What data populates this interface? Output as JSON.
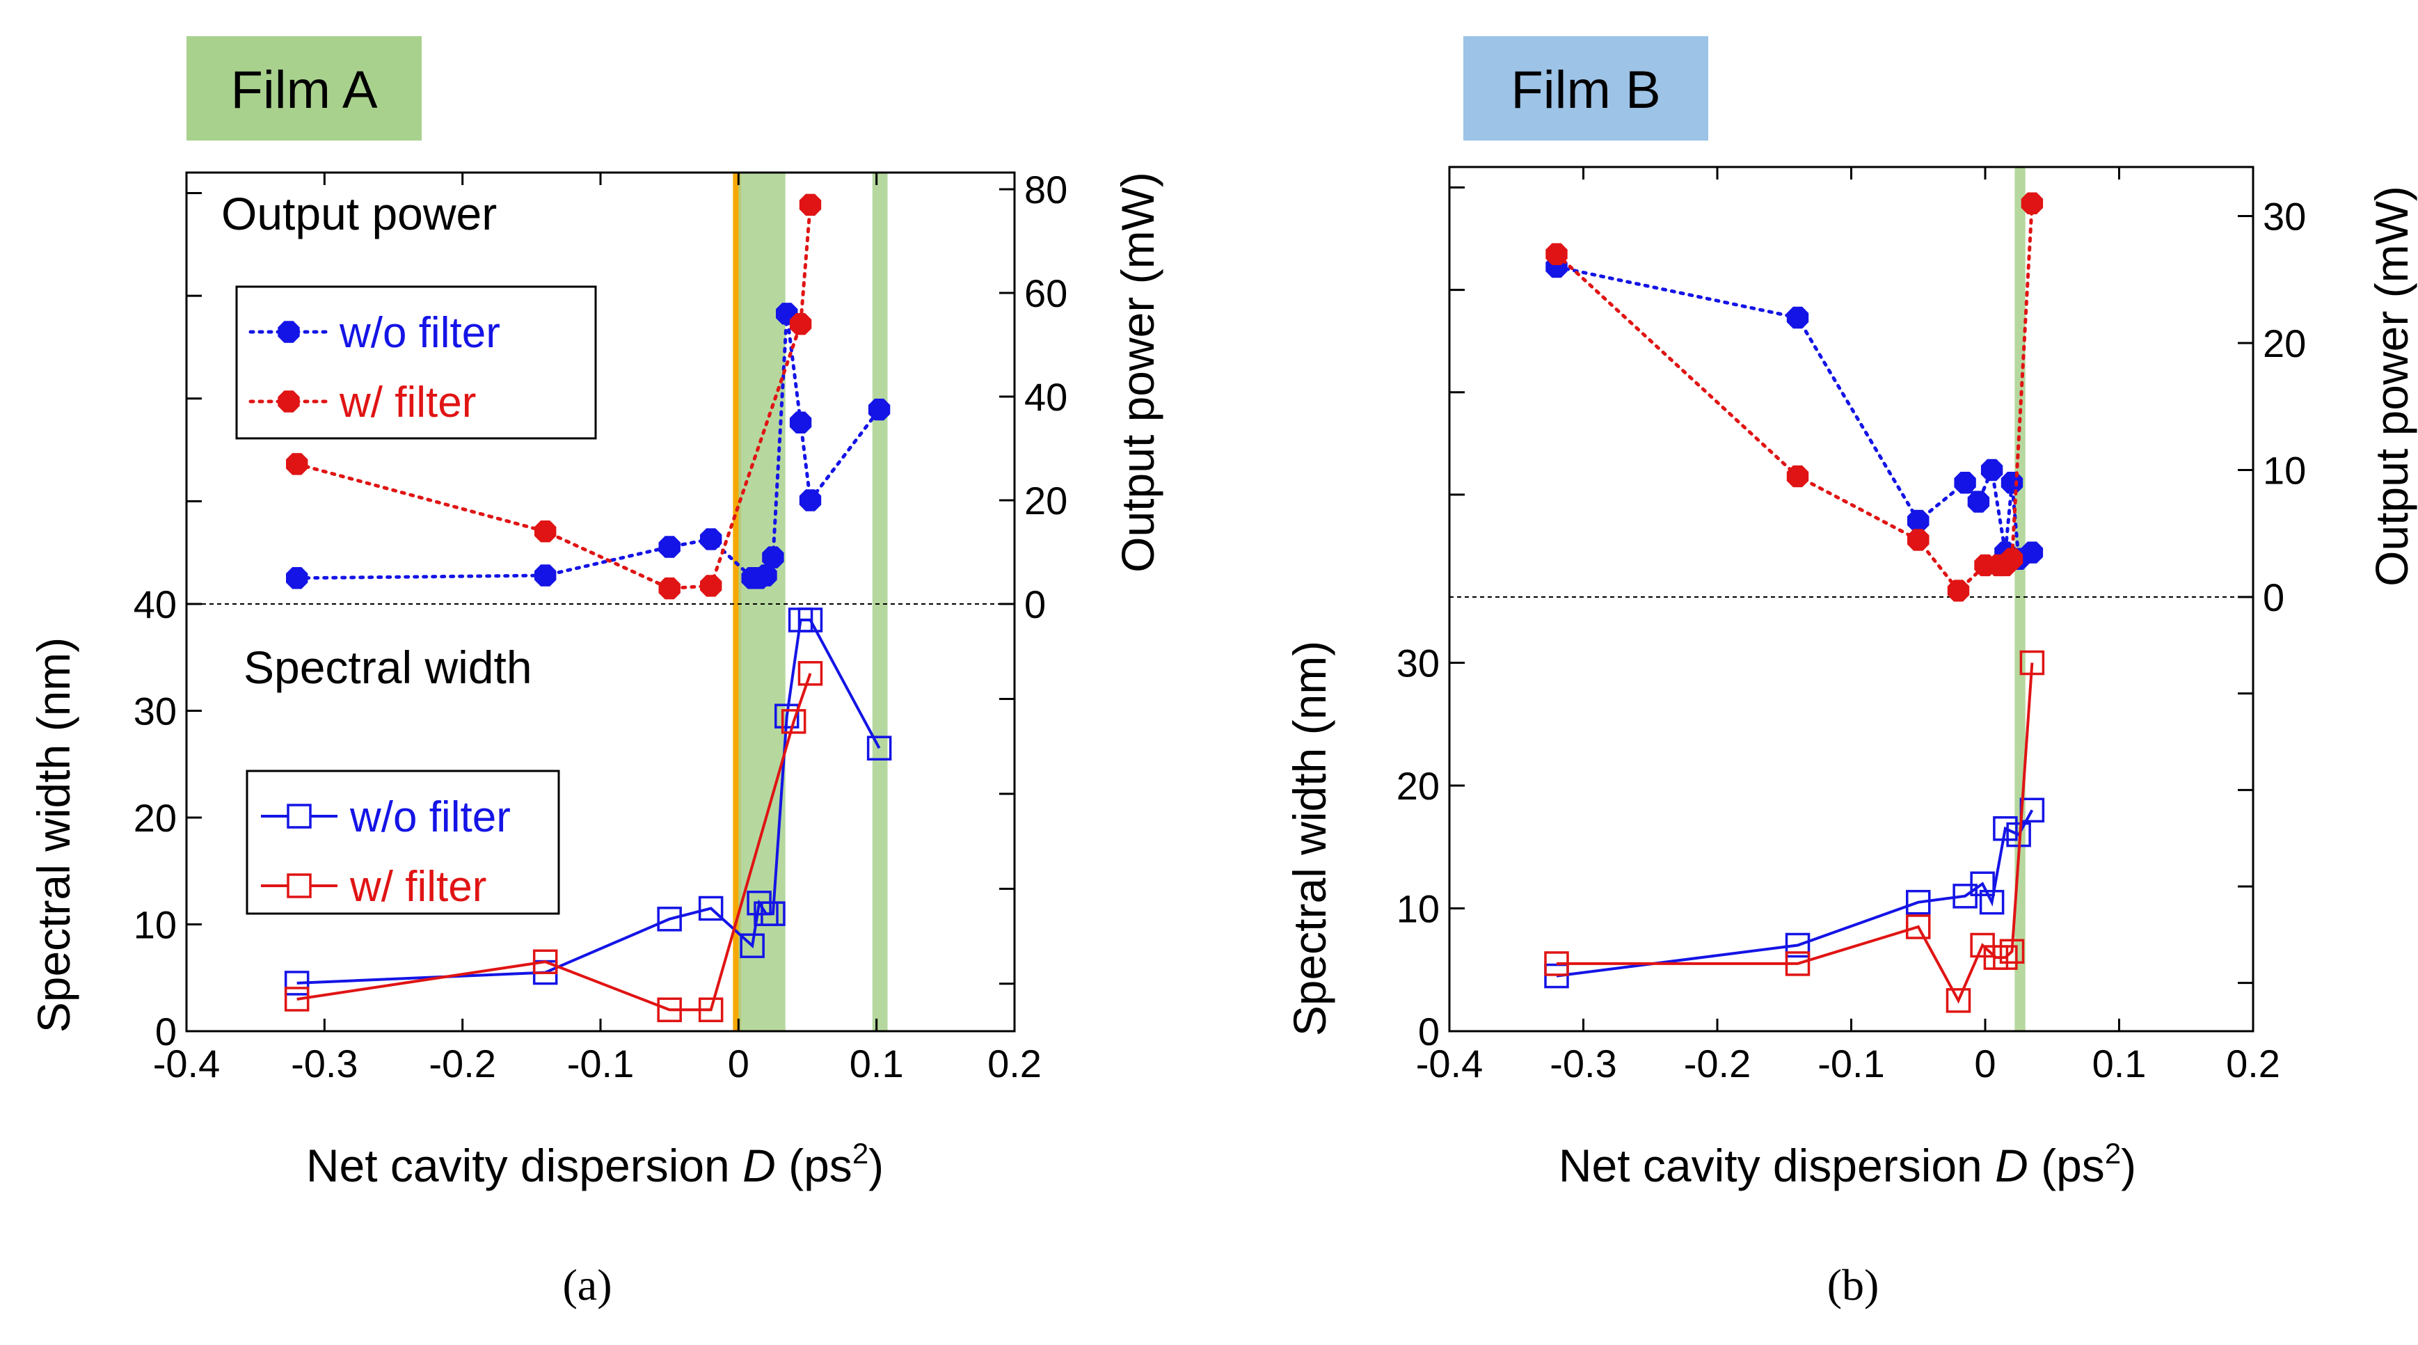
{
  "colors": {
    "blue": "#1414e6",
    "red": "#e01414",
    "green_band": "#a9d18e",
    "orange_band": "#f5a800",
    "film_a_bg": "#a9d18e",
    "film_b_bg": "#9dc3e6"
  },
  "chart_data": [
    {
      "type": "scatter",
      "panel_label": "(a)",
      "film_label": "Film A",
      "xlabel_pre": "Net cavity dispersion ",
      "xlabel_var": "D",
      "xlabel_unit": " (ps",
      "xlabel_sup": "2",
      "xlabel_close": ")",
      "xlim": [
        -0.4,
        0.2
      ],
      "xticks": [
        "-0.4",
        "-0.3",
        "-0.2",
        "-0.1",
        "0",
        "0.1",
        "0.2"
      ],
      "left_axis": {
        "label": "Spectral width (nm)",
        "ticks": [
          "0",
          "10",
          "20",
          "30",
          "40"
        ],
        "range": [
          0,
          40
        ]
      },
      "right_axis": {
        "label": "Output power (mW)",
        "ticks": [
          "0",
          "20",
          "40",
          "60",
          "80"
        ],
        "range": [
          0,
          80
        ]
      },
      "section_labels": {
        "top": "Output  power",
        "bottom": "Spectral width"
      },
      "bands": [
        {
          "type": "orange",
          "x": [
            -0.004,
            0.002
          ]
        },
        {
          "type": "green",
          "x": [
            0.0,
            0.034
          ]
        },
        {
          "type": "green",
          "x": [
            0.097,
            0.108
          ]
        }
      ],
      "legend_power": [
        {
          "name": "w/o filter",
          "color": "blue"
        },
        {
          "name": "w/ filter",
          "color": "red"
        }
      ],
      "legend_width": [
        {
          "name": "w/o filter",
          "color": "blue"
        },
        {
          "name": "w/ filter",
          "color": "red"
        }
      ],
      "power_series": [
        {
          "name": "w/o filter",
          "color": "blue",
          "x": [
            -0.32,
            -0.14,
            -0.05,
            -0.02,
            0.01,
            0.015,
            0.02,
            0.025,
            0.035,
            0.045,
            0.052,
            0.102
          ],
          "y": [
            5,
            5.5,
            11,
            12.5,
            5,
            5,
            5.5,
            9,
            56,
            35,
            20,
            37.5
          ]
        },
        {
          "name": "w/ filter",
          "color": "red",
          "x": [
            -0.32,
            -0.14,
            -0.05,
            -0.02,
            0.045,
            0.052
          ],
          "y": [
            27,
            14,
            3,
            3.5,
            54,
            77
          ]
        }
      ],
      "width_series": [
        {
          "name": "w/o filter",
          "color": "blue",
          "x": [
            -0.32,
            -0.14,
            -0.05,
            -0.02,
            0.01,
            0.015,
            0.02,
            0.025,
            0.035,
            0.045,
            0.052,
            0.102
          ],
          "y": [
            4.5,
            5.5,
            10.5,
            11.5,
            8,
            12,
            11,
            11,
            29.5,
            38.5,
            38.5,
            26.5
          ]
        },
        {
          "name": "w/ filter",
          "color": "red",
          "x": [
            -0.32,
            -0.14,
            -0.05,
            -0.02,
            0.04,
            0.052
          ],
          "y": [
            3,
            6.5,
            2,
            2,
            29,
            33.5
          ]
        }
      ]
    },
    {
      "type": "scatter",
      "panel_label": "(b)",
      "film_label": "Film B",
      "xlabel_pre": "Net cavity dispersion ",
      "xlabel_var": "D",
      "xlabel_unit": " (ps",
      "xlabel_sup": "2",
      "xlabel_close": ")",
      "xlim": [
        -0.4,
        0.2
      ],
      "xticks": [
        "-0.4",
        "-0.3",
        "-0.2",
        "-0.1",
        "0",
        "0.1",
        "0.2"
      ],
      "left_axis": {
        "label": "Spectral width (nm)",
        "ticks": [
          "0",
          "10",
          "20",
          "30"
        ],
        "range": [
          0,
          35
        ]
      },
      "right_axis": {
        "label": "Output power (mW)",
        "ticks": [
          "0",
          "10",
          "20",
          "30"
        ],
        "range": [
          0,
          35
        ]
      },
      "bands": [
        {
          "type": "green",
          "x": [
            0.022,
            0.03
          ]
        }
      ],
      "power_series": [
        {
          "name": "w/o filter",
          "color": "blue",
          "x": [
            -0.32,
            -0.14,
            -0.05,
            -0.015,
            -0.005,
            0.005,
            0.015,
            0.02,
            0.025,
            0.035
          ],
          "y": [
            26,
            22,
            6,
            9,
            7.5,
            10,
            3.5,
            9,
            3,
            3.5
          ]
        },
        {
          "name": "w/ filter",
          "color": "red",
          "x": [
            -0.32,
            -0.14,
            -0.05,
            -0.02,
            0.0,
            0.01,
            0.015,
            0.02,
            0.035
          ],
          "y": [
            27,
            9.5,
            4.5,
            0.5,
            2.5,
            2.5,
            2.5,
            3,
            31
          ]
        }
      ],
      "width_series": [
        {
          "name": "w/o filter",
          "color": "blue",
          "x": [
            -0.32,
            -0.14,
            -0.05,
            -0.015,
            -0.002,
            0.005,
            0.015,
            0.025,
            0.035
          ],
          "y": [
            4.5,
            7,
            10.5,
            11,
            12,
            10.5,
            16.5,
            16,
            18
          ]
        },
        {
          "name": "w/ filter",
          "color": "red",
          "x": [
            -0.32,
            -0.14,
            -0.05,
            -0.02,
            -0.002,
            0.008,
            0.015,
            0.02,
            0.035
          ],
          "y": [
            5.5,
            5.5,
            8.5,
            2.5,
            7,
            6,
            6,
            6.5,
            30
          ]
        }
      ]
    }
  ]
}
